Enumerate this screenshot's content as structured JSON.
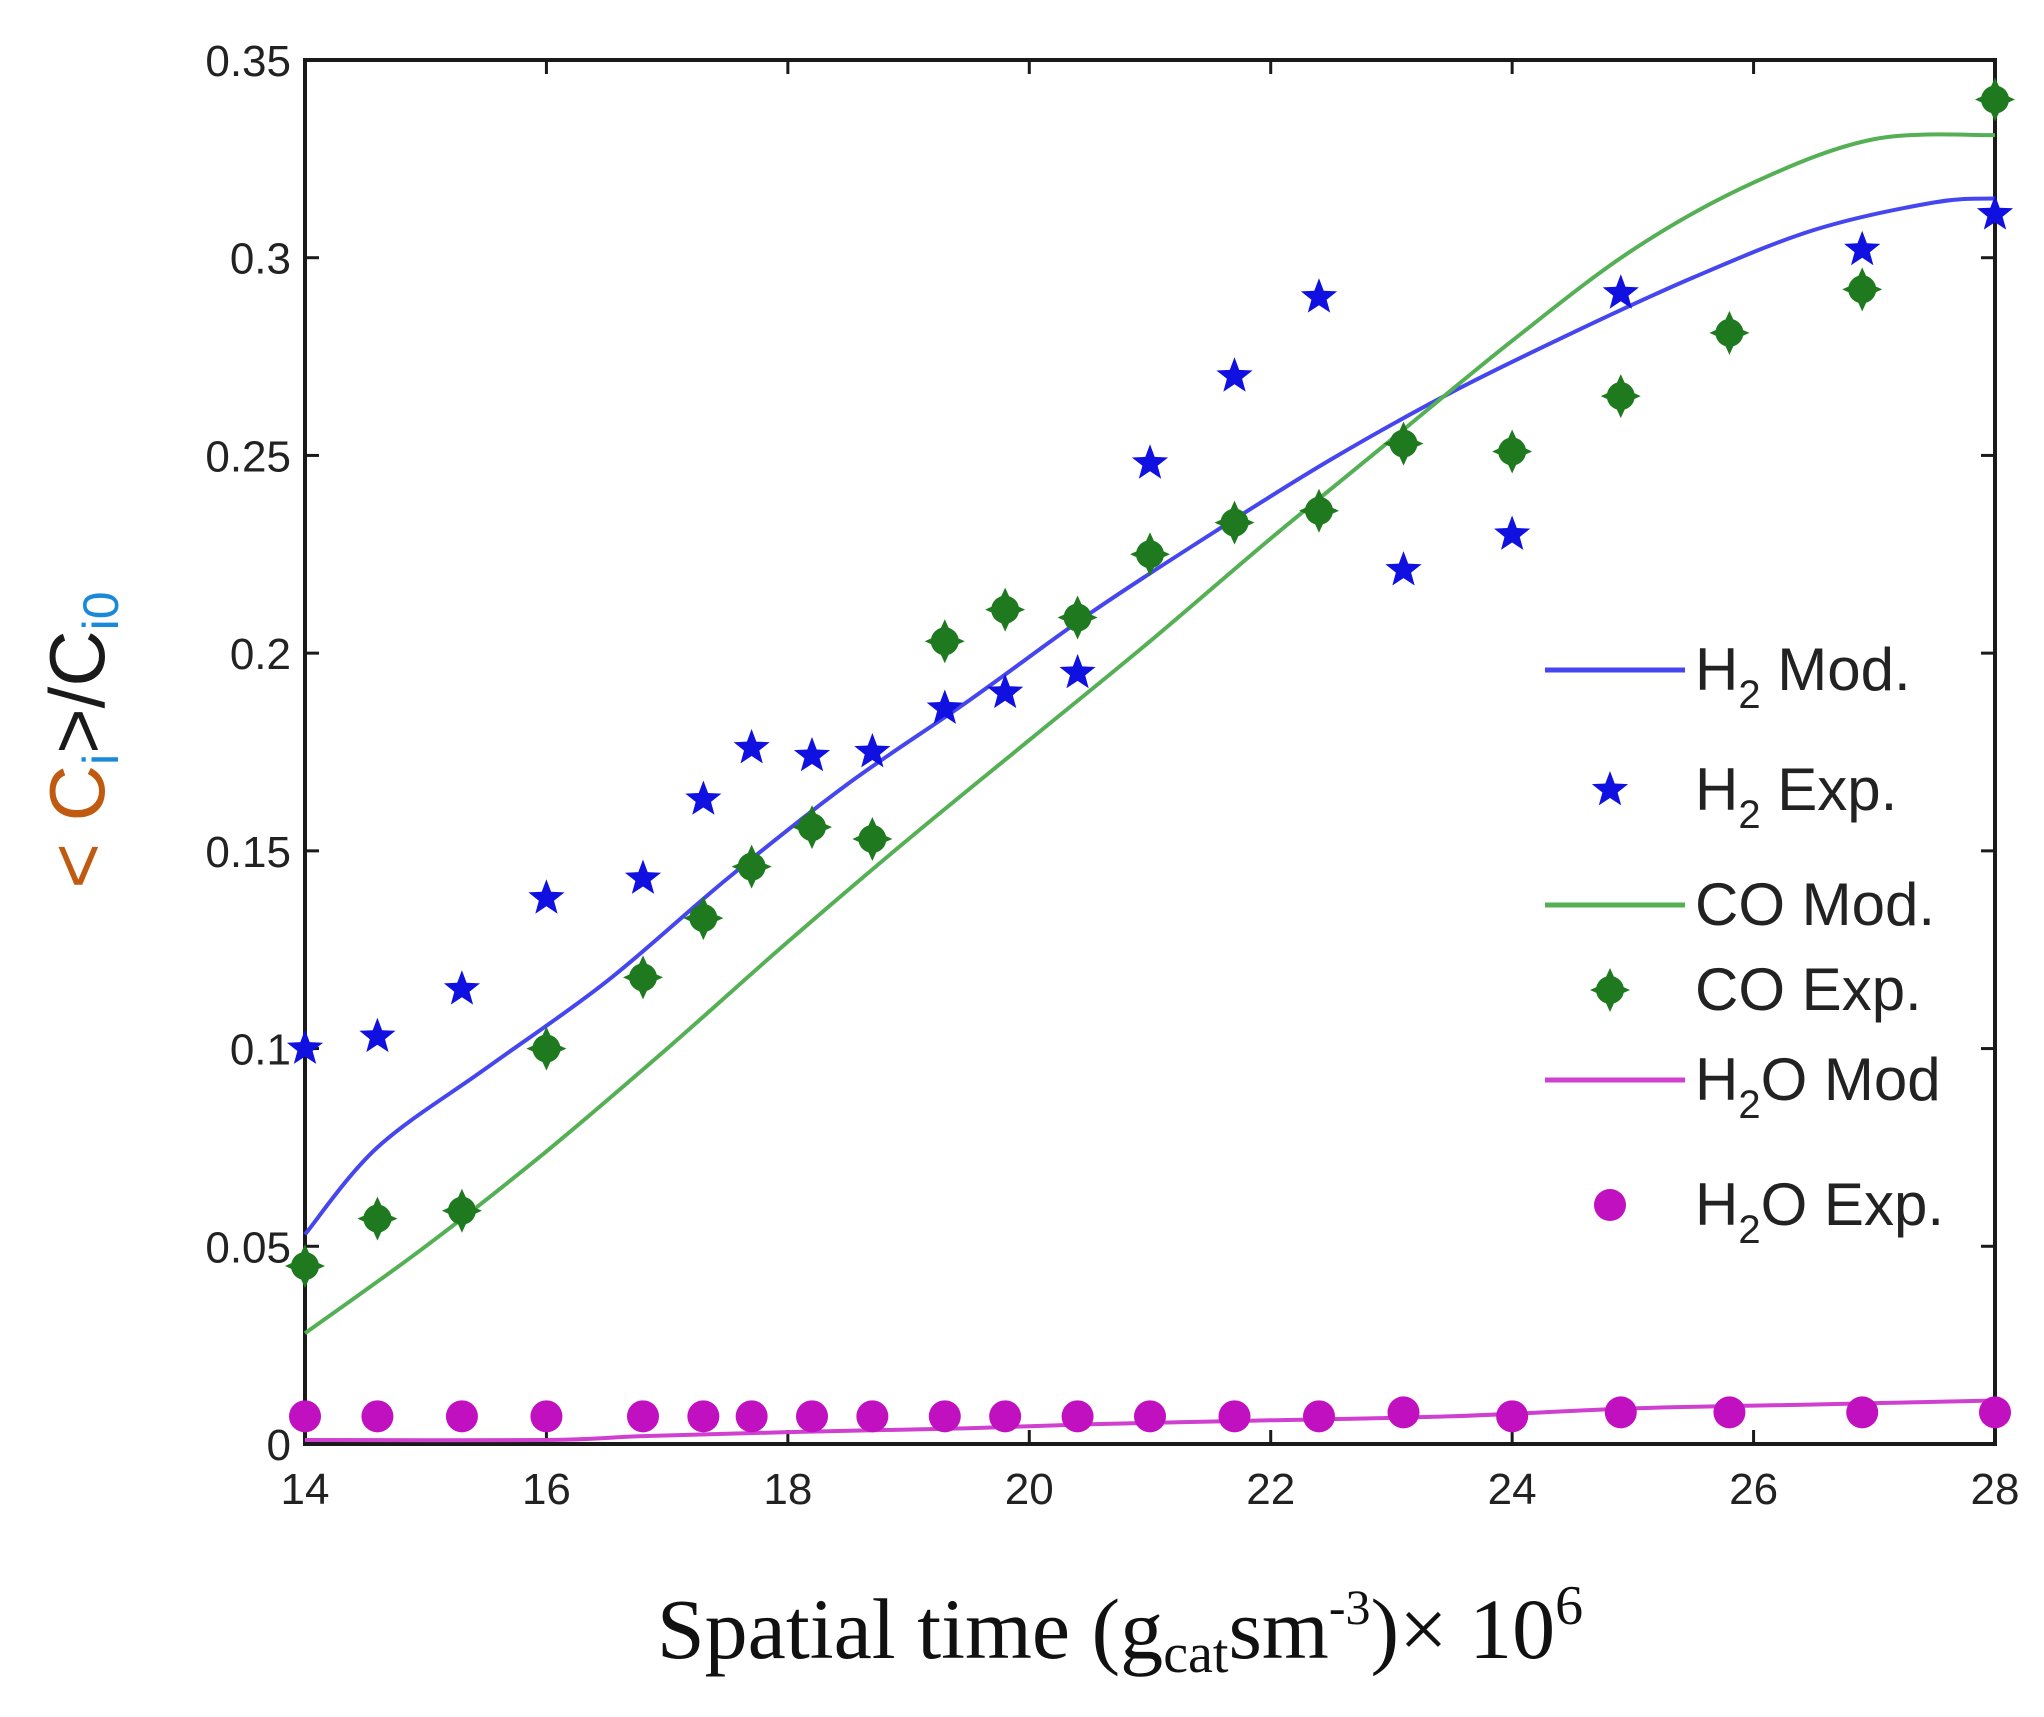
{
  "chart_data": {
    "type": "line",
    "title": "",
    "xlabel": {
      "main": "Spatial time (g",
      "sub": "cat",
      "mid": "sm",
      "sup": "-3",
      "tail": ")× 10",
      "exp": "6"
    },
    "ylabel": {
      "open": "< C",
      "sub_i": "i",
      "close": ">/C",
      "sub_i0": "i0"
    },
    "xlim": [
      14,
      28
    ],
    "ylim": [
      0,
      0.35
    ],
    "xticks": [
      "14",
      "16",
      "18",
      "20",
      "22",
      "24",
      "26",
      "28"
    ],
    "yticks": [
      "0",
      "0.05",
      "0.1",
      "0.15",
      "0.2",
      "0.25",
      "0.3",
      "0.35"
    ],
    "grid": false,
    "legend_position": "right",
    "series": [
      {
        "name": "H2 Mod.",
        "label_main": "H",
        "label_sub": "2",
        "label_rest": " Mod.",
        "kind": "line",
        "color": "#4646f0",
        "x": [
          14,
          14.6,
          15.5,
          16.5,
          17.5,
          18.5,
          19.5,
          20.5,
          21.5,
          22.5,
          23.5,
          24.5,
          25.5,
          26.5,
          27.5,
          28
        ],
        "y": [
          0.053,
          0.075,
          0.095,
          0.117,
          0.143,
          0.167,
          0.188,
          0.21,
          0.23,
          0.249,
          0.266,
          0.281,
          0.295,
          0.307,
          0.314,
          0.315
        ]
      },
      {
        "name": "H2 Exp.",
        "label_main": "H",
        "label_sub": "2",
        "label_rest": " Exp.",
        "kind": "marker",
        "marker": "star",
        "color": "#1010e0",
        "x": [
          14,
          14.6,
          15.3,
          16,
          16.8,
          17.3,
          17.7,
          18.2,
          18.7,
          19.3,
          19.8,
          20.4,
          21,
          21.7,
          22.4,
          23.1,
          24,
          24.9,
          26.9,
          28
        ],
        "y": [
          0.1,
          0.103,
          0.115,
          0.138,
          0.143,
          0.163,
          0.176,
          0.174,
          0.175,
          0.186,
          0.19,
          0.195,
          0.248,
          0.27,
          0.29,
          0.221,
          0.23,
          0.291,
          0.302,
          0.311
        ]
      },
      {
        "name": "CO Mod.",
        "label_main": "CO Mod.",
        "label_sub": "",
        "label_rest": "",
        "kind": "line",
        "color": "#55b055",
        "x": [
          14,
          15,
          16,
          17,
          18,
          19,
          20,
          21,
          22,
          23,
          24,
          25,
          26,
          27,
          28
        ],
        "y": [
          0.028,
          0.05,
          0.074,
          0.1,
          0.127,
          0.153,
          0.178,
          0.203,
          0.229,
          0.254,
          0.279,
          0.302,
          0.319,
          0.33,
          0.331
        ]
      },
      {
        "name": "CO Exp.",
        "label_main": "CO Exp.",
        "label_sub": "",
        "label_rest": "",
        "kind": "marker",
        "marker": "diamond",
        "color": "#1f7a1f",
        "x": [
          14,
          14.6,
          15.3,
          16,
          16.8,
          17.3,
          17.7,
          18.2,
          18.7,
          19.3,
          19.8,
          20.4,
          21,
          21.7,
          22.4,
          23.1,
          24,
          24.9,
          25.8,
          26.9,
          28
        ],
        "y": [
          0.045,
          0.057,
          0.059,
          0.1,
          0.118,
          0.133,
          0.146,
          0.156,
          0.153,
          0.203,
          0.211,
          0.209,
          0.225,
          0.233,
          0.236,
          0.253,
          0.251,
          0.265,
          0.281,
          0.292,
          0.34
        ]
      },
      {
        "name": "H2O Mod",
        "label_main": "H",
        "label_sub": "2",
        "label_rest": "O Mod",
        "kind": "line",
        "color": "#d040d0",
        "x": [
          14,
          16,
          16.8,
          18,
          19.5,
          20.5,
          22,
          23.5,
          25,
          26.5,
          28
        ],
        "y": [
          0.001,
          0.001,
          0.002,
          0.003,
          0.004,
          0.005,
          0.006,
          0.007,
          0.009,
          0.01,
          0.011
        ]
      },
      {
        "name": "H2O Exp.",
        "label_main": "H",
        "label_sub": "2",
        "label_rest": "O Exp.",
        "kind": "marker",
        "marker": "circle",
        "color": "#c010c0",
        "x": [
          14,
          14.6,
          15.3,
          16,
          16.8,
          17.3,
          17.7,
          18.2,
          18.7,
          19.3,
          19.8,
          20.4,
          21,
          21.7,
          22.4,
          23.1,
          24,
          24.9,
          25.8,
          26.9,
          28
        ],
        "y": [
          0.007,
          0.007,
          0.007,
          0.007,
          0.007,
          0.007,
          0.007,
          0.007,
          0.007,
          0.007,
          0.007,
          0.007,
          0.007,
          0.007,
          0.007,
          0.008,
          0.007,
          0.008,
          0.008,
          0.008,
          0.008
        ]
      }
    ]
  }
}
